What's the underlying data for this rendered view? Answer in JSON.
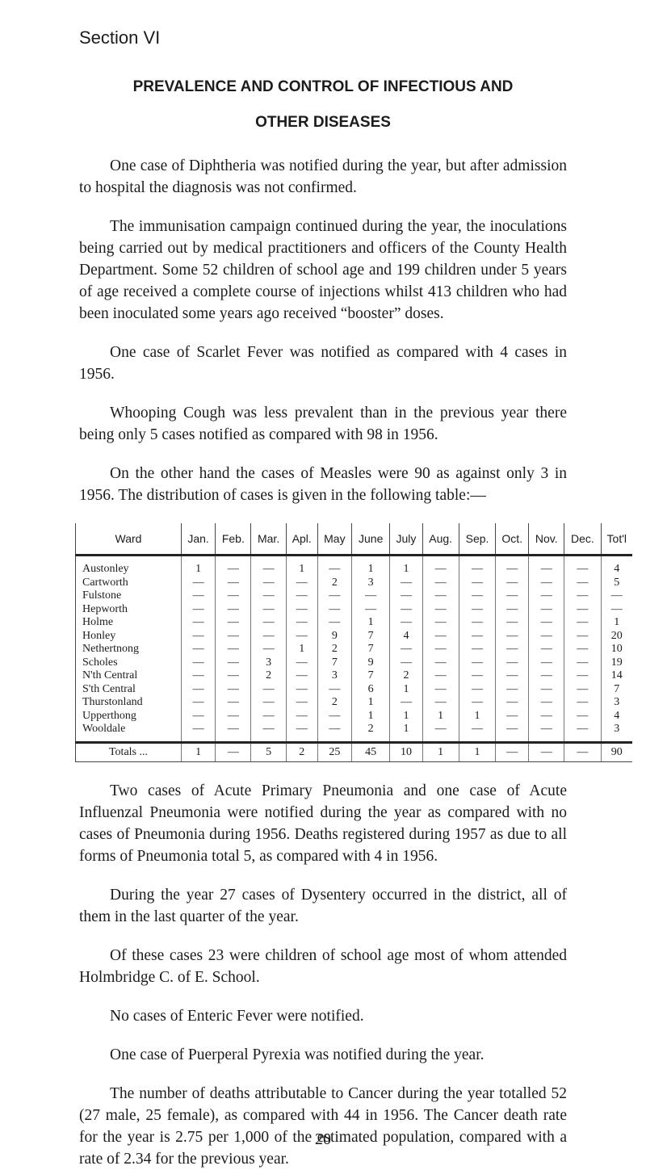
{
  "section": "Section VI",
  "title": [
    "PREVALENCE AND CONTROL OF INFECTIOUS AND",
    "OTHER DISEASES"
  ],
  "paragraphs_before": [
    "One case of Diphtheria was notified during the year, but after admission to hospital the diagnosis was not confirmed.",
    "The immunisation campaign continued during the year, the inoculations being carried out by medical practitioners and officers of the County Health Department. Some 52 children of school age and 199 children under 5 years of age received a complete course of injections whilst 413 children who had been inoculated some years ago received “booster” doses.",
    "One case of Scarlet Fever was notified as compared with 4 cases in 1956.",
    "Whooping Cough was less prevalent than in the previous year there being only 5 cases notified as compared with 98 in 1956.",
    "On the other hand the cases of Measles were 90 as against only 3 in 1956. The distribution of cases is given in the following table:—"
  ],
  "table": {
    "header": [
      "Ward",
      "Jan.",
      "Feb.",
      "Mar.",
      "Apl.",
      "May",
      "June",
      "July",
      "Aug.",
      "Sep.",
      "Oct.",
      "Nov.",
      "Dec.",
      "Tot'l"
    ],
    "rows": [
      [
        "Austonley",
        "1",
        "—",
        "—",
        "1",
        "—",
        "1",
        "1",
        "—",
        "—",
        "—",
        "—",
        "—",
        "4"
      ],
      [
        "Cartworth",
        "—",
        "—",
        "—",
        "—",
        "2",
        "3",
        "—",
        "—",
        "—",
        "—",
        "—",
        "—",
        "5"
      ],
      [
        "Fulstone",
        "—",
        "—",
        "—",
        "—",
        "—",
        "—",
        "—",
        "—",
        "—",
        "—",
        "—",
        "—",
        "—"
      ],
      [
        "Hepworth",
        "—",
        "—",
        "—",
        "—",
        "—",
        "—",
        "—",
        "—",
        "—",
        "—",
        "—",
        "—",
        "—"
      ],
      [
        "Holme",
        "—",
        "—",
        "—",
        "—",
        "—",
        "1",
        "—",
        "—",
        "—",
        "—",
        "—",
        "—",
        "1"
      ],
      [
        "Honley",
        "—",
        "—",
        "—",
        "—",
        "9",
        "7",
        "4",
        "—",
        "—",
        "—",
        "—",
        "—",
        "20"
      ],
      [
        "Nethertnong",
        "—",
        "—",
        "—",
        "1",
        "2",
        "7",
        "—",
        "—",
        "—",
        "—",
        "—",
        "—",
        "10"
      ],
      [
        "Scholes",
        "—",
        "—",
        "3",
        "—",
        "7",
        "9",
        "—",
        "—",
        "—",
        "—",
        "—",
        "—",
        "19"
      ],
      [
        "N'th Central",
        "—",
        "—",
        "2",
        "—",
        "3",
        "7",
        "2",
        "—",
        "—",
        "—",
        "—",
        "—",
        "14"
      ],
      [
        "S'th Central",
        "—",
        "—",
        "—",
        "—",
        "—",
        "6",
        "1",
        "—",
        "—",
        "—",
        "—",
        "—",
        "7"
      ],
      [
        "Thurstonland",
        "—",
        "—",
        "—",
        "—",
        "2",
        "1",
        "—",
        "—",
        "—",
        "—",
        "—",
        "—",
        "3"
      ],
      [
        "Upperthong",
        "—",
        "—",
        "—",
        "—",
        "—",
        "1",
        "1",
        "1",
        "1",
        "—",
        "—",
        "—",
        "4"
      ],
      [
        "Wooldale",
        "—",
        "—",
        "—",
        "—",
        "—",
        "2",
        "1",
        "—",
        "—",
        "—",
        "—",
        "—",
        "3"
      ]
    ],
    "totals": [
      "Totals ...",
      "1",
      "—",
      "5",
      "2",
      "25",
      "45",
      "10",
      "1",
      "1",
      "—",
      "—",
      "—",
      "90"
    ]
  },
  "paragraphs_after": [
    "Two cases of Acute Primary Pneumonia and one case of Acute Influenzal Pneumonia were notified during the year as compared with no cases of Pneumonia during 1956. Deaths registered during 1957 as due to all forms of Pneumonia total 5, as compared with 4 in 1956.",
    "During the year 27 cases of Dysentery occurred in the district, all of them in the last quarter of the year.",
    "Of these cases 23 were children of school age most of whom attended Holmbridge C. of E. School.",
    "No cases of Enteric Fever were notified.",
    "One case of Puerperal Pyrexia was notified during the year.",
    "The number of deaths attributable to Cancer during the year totalled 52 (27 male, 25 female), as compared with 44 in 1956. The Cancer death rate for the year is 2.75 per 1,000 of the estimated population, compared with a rate of 2.34 for the previous year."
  ],
  "page_number": "20"
}
